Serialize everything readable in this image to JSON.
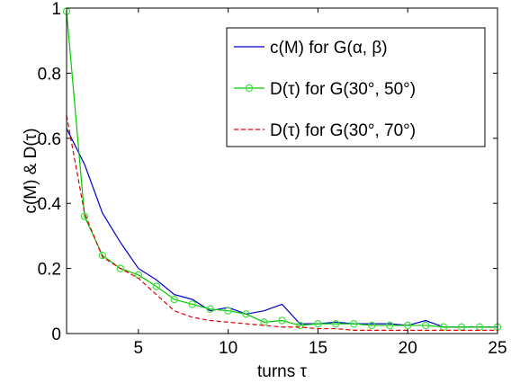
{
  "chart_data": {
    "type": "line",
    "xlabel": "turns τ",
    "ylabel": "c(M) & D(τ)",
    "xlim": [
      1,
      25
    ],
    "ylim": [
      0,
      1
    ],
    "xticks": [
      5,
      10,
      15,
      20,
      25
    ],
    "yticks": [
      0,
      0.2,
      0.4,
      0.6,
      0.8,
      1
    ],
    "xtick_labels": [
      "5",
      "10",
      "15",
      "20",
      "25"
    ],
    "ytick_labels": [
      "0",
      "0.2",
      "0.4",
      "0.6",
      "0.8",
      "1"
    ],
    "grid": false,
    "legend_position": "top-right",
    "series": [
      {
        "name": "c(M) for G(α, β)",
        "color": "#0000cc",
        "style": "solid",
        "marker": "none",
        "x": [
          1,
          2,
          3,
          4,
          5,
          6,
          7,
          8,
          9,
          10,
          11,
          12,
          13,
          14,
          15,
          16,
          17,
          18,
          19,
          20,
          21,
          22,
          23,
          24,
          25
        ],
        "values": [
          0.63,
          0.52,
          0.37,
          0.28,
          0.2,
          0.165,
          0.12,
          0.105,
          0.07,
          0.08,
          0.06,
          0.07,
          0.09,
          0.03,
          0.03,
          0.035,
          0.03,
          0.03,
          0.03,
          0.025,
          0.04,
          0.02,
          0.02,
          0.02,
          0.02
        ]
      },
      {
        "name": "D(τ) for G(30°, 50°)",
        "color": "#00cc00",
        "marker_color": "#44dd44",
        "style": "solid",
        "marker": "circle",
        "x": [
          1,
          2,
          3,
          4,
          5,
          6,
          7,
          8,
          9,
          10,
          11,
          12,
          13,
          14,
          15,
          16,
          17,
          18,
          19,
          20,
          21,
          22,
          23,
          24,
          25
        ],
        "values": [
          0.99,
          0.36,
          0.24,
          0.2,
          0.18,
          0.145,
          0.105,
          0.09,
          0.075,
          0.07,
          0.06,
          0.035,
          0.04,
          0.025,
          0.03,
          0.03,
          0.03,
          0.025,
          0.025,
          0.025,
          0.025,
          0.02,
          0.02,
          0.02,
          0.02
        ]
      },
      {
        "name": "D(τ) for G(30°, 70°)",
        "color": "#dd0000",
        "style": "dashed",
        "marker": "none",
        "x": [
          1,
          2,
          3,
          4,
          5,
          6,
          7,
          8,
          9,
          10,
          11,
          12,
          13,
          14,
          15,
          16,
          17,
          18,
          19,
          20,
          21,
          22,
          23,
          24,
          25
        ],
        "values": [
          0.67,
          0.37,
          0.235,
          0.2,
          0.17,
          0.12,
          0.07,
          0.05,
          0.04,
          0.035,
          0.03,
          0.025,
          0.02,
          0.02,
          0.015,
          0.015,
          0.01,
          0.01,
          0.01,
          0.01,
          0.01,
          0.01,
          0.01,
          0.01,
          0.01
        ]
      }
    ]
  }
}
